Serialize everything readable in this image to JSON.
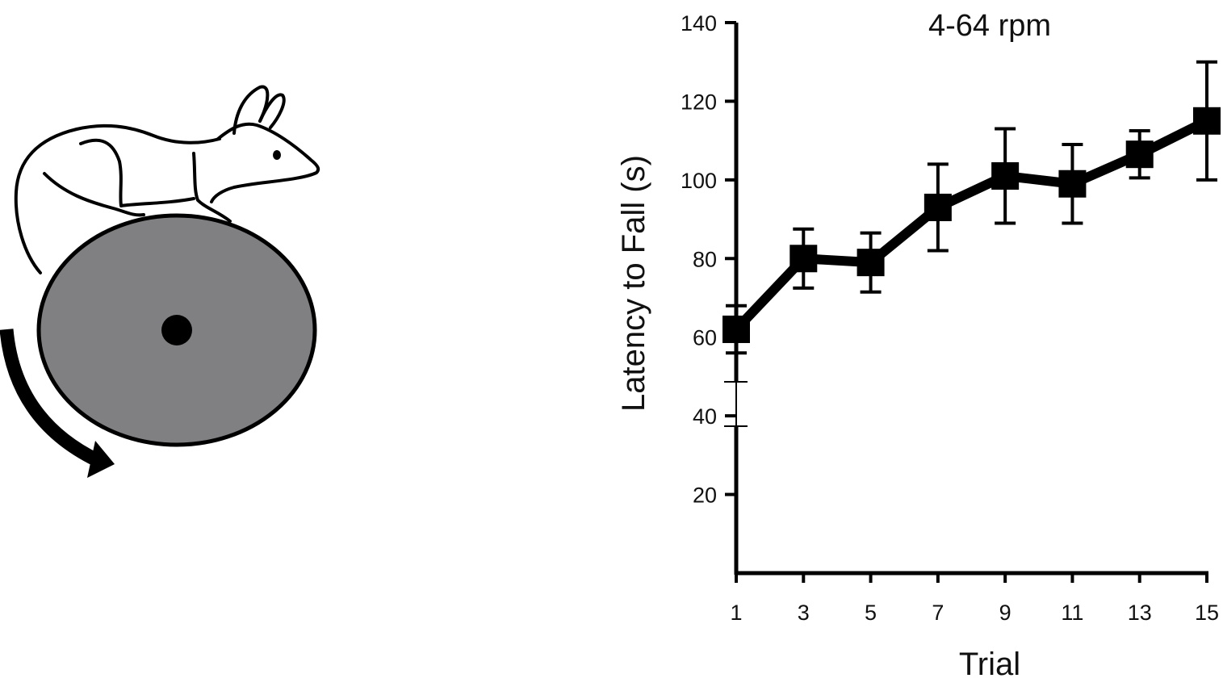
{
  "illustration": {
    "subject": "mouse-on-rotarod",
    "rod_color": "#808083",
    "outline_color": "#000000"
  },
  "chart_data": {
    "type": "line",
    "title": "4-64 rpm",
    "xlabel": "Trial",
    "ylabel": "Latency to Fall (s)",
    "x": [
      1,
      3,
      5,
      7,
      9,
      11,
      13,
      15
    ],
    "x_ticks": [
      "1",
      "3",
      "5",
      "7",
      "9",
      "11",
      "13",
      "15"
    ],
    "y_ticks": [
      "20",
      "40",
      "60",
      "80",
      "100",
      "120",
      "140"
    ],
    "ylim": [
      0,
      140
    ],
    "xlim": [
      1,
      15
    ],
    "grid": false,
    "axis_break": true,
    "series": [
      {
        "values": [
          62,
          80,
          79,
          93,
          101,
          99,
          106.5,
          115
        ],
        "error": [
          6,
          7.5,
          7.5,
          11,
          12,
          10,
          6,
          15
        ],
        "color": "#000000",
        "marker": "square"
      }
    ]
  }
}
